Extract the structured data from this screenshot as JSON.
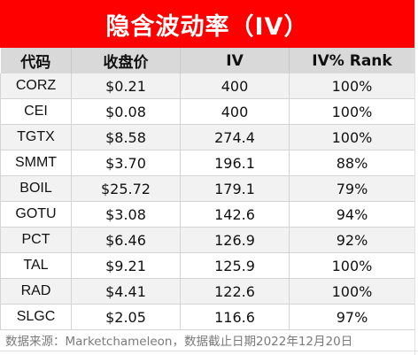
{
  "title": "隐含波动率（IV）",
  "headers": [
    "代码",
    "收盘价",
    "IV",
    "IV% Rank"
  ],
  "rows": [
    {
      "symbol": "CORZ",
      "close": "$0.21",
      "iv": "400",
      "rank": "100%"
    },
    {
      "symbol": "CEI",
      "close": "$0.08",
      "iv": "400",
      "rank": "100%"
    },
    {
      "symbol": "TGTX",
      "close": "$8.58",
      "iv": "274.4",
      "rank": "100%"
    },
    {
      "symbol": "SMMT",
      "close": "$3.70",
      "iv": "196.1",
      "rank": "88%"
    },
    {
      "symbol": "BOIL",
      "close": "$25.72",
      "iv": "179.1",
      "rank": "79%"
    },
    {
      "symbol": "GOTU",
      "close": "$3.08",
      "iv": "142.6",
      "rank": "94%"
    },
    {
      "symbol": "PCT",
      "close": "$6.46",
      "iv": "126.9",
      "rank": "92%"
    },
    {
      "symbol": "TAL",
      "close": "$9.21",
      "iv": "125.9",
      "rank": "100%"
    },
    {
      "symbol": "RAD",
      "close": "$4.41",
      "iv": "122.6",
      "rank": "100%"
    },
    {
      "symbol": "SLGC",
      "close": "$2.05",
      "iv": "116.6",
      "rank": "97%"
    }
  ],
  "footer": "数据来源：Marketchameleon，数据截止日期2022年12月20日",
  "colors": {
    "title_bg": "#ff0000",
    "header_bg": "#d9d9d9",
    "stripe_bg": "#f2f2f2"
  }
}
